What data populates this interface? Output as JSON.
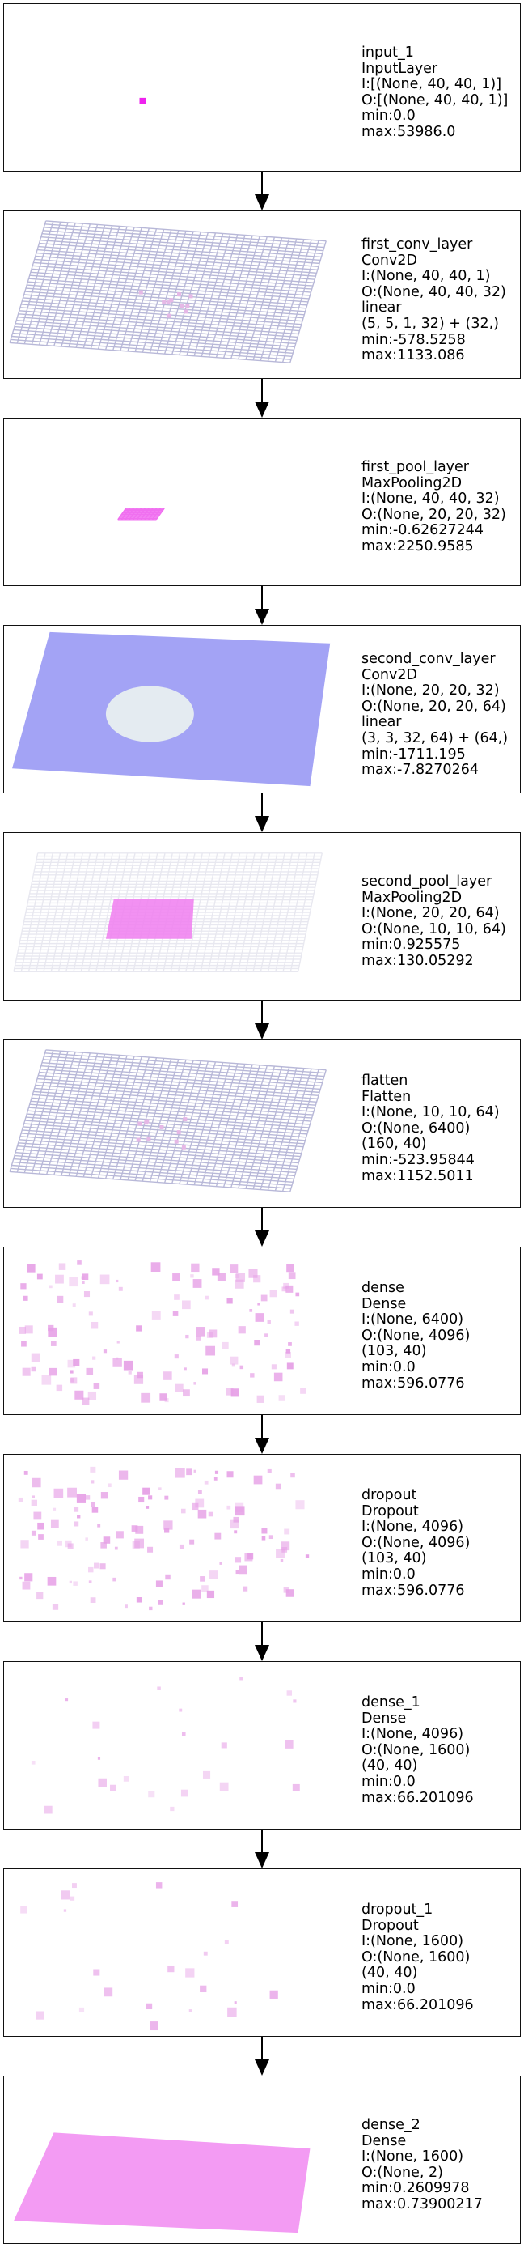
{
  "layers": [
    {
      "name": "input_1",
      "type": "InputLayer",
      "details": [
        "I:[(None, 40, 40, 1)]",
        "O:[(None, 40, 40, 1)]",
        "min:0.0",
        "max:53986.0"
      ],
      "viz": "point",
      "color": "#ee22ee"
    },
    {
      "name": "first_conv_layer",
      "type": "Conv2D",
      "details": [
        "I:(None, 40, 40, 1)",
        "O:(None, 40, 40, 32)",
        "linear",
        "(5, 5, 1, 32) + (32,)",
        "min:-578.5258",
        "max:1133.086"
      ],
      "viz": "grid",
      "color": "#b8b8d8",
      "accent": "#e6b8e6"
    },
    {
      "name": "first_pool_layer",
      "type": "MaxPooling2D",
      "details": [
        "I:(None, 40, 40, 32)",
        "O:(None, 20, 20, 32)",
        "min:-0.62627244",
        "max:2250.9585"
      ],
      "viz": "smallgrid",
      "color": "#f070f0"
    },
    {
      "name": "second_conv_layer",
      "type": "Conv2D",
      "details": [
        "I:(None, 20, 20, 32)",
        "O:(None, 20, 20, 64)",
        "linear",
        "(3, 3, 32, 64) + (64,)",
        "min:-1711.195",
        "max:-7.8270264"
      ],
      "viz": "bluegrid",
      "color": "#8c8cf2",
      "accent": "#f0f8f0"
    },
    {
      "name": "second_pool_layer",
      "type": "MaxPooling2D",
      "details": [
        "I:(None, 20, 20, 64)",
        "O:(None, 10, 10, 64)",
        "min:0.925575",
        "max:130.05292"
      ],
      "viz": "pinkcenter",
      "color": "#e8e8f0",
      "accent": "#f07ef0"
    },
    {
      "name": "flatten",
      "type": "Flatten",
      "details": [
        "I:(None, 10, 10, 64)",
        "O:(None, 6400)",
        "(160, 40)",
        "min:-523.95844",
        "max:1152.5011"
      ],
      "viz": "grid",
      "color": "#b8b8d8",
      "accent": "#e6b8e6"
    },
    {
      "name": "dense",
      "type": "Dense",
      "details": [
        "I:(None, 6400)",
        "O:(None, 4096)",
        "(103, 40)",
        "min:0.0",
        "max:596.0776"
      ],
      "viz": "scatter",
      "color": "#e6a0e6",
      "count": 120
    },
    {
      "name": "dropout",
      "type": "Dropout",
      "details": [
        "I:(None, 4096)",
        "O:(None, 4096)",
        "(103, 40)",
        "min:0.0",
        "max:596.0776"
      ],
      "viz": "scatter",
      "color": "#e6a0e6",
      "count": 120
    },
    {
      "name": "dense_1",
      "type": "Dense",
      "details": [
        "I:(None, 4096)",
        "O:(None, 1600)",
        "(40, 40)",
        "min:0.0",
        "max:66.201096"
      ],
      "viz": "scatter",
      "color": "#eaaeea",
      "count": 22
    },
    {
      "name": "dropout_1",
      "type": "Dropout",
      "details": [
        "I:(None, 1600)",
        "O:(None, 1600)",
        "(40, 40)",
        "min:0.0",
        "max:66.201096"
      ],
      "viz": "scatter",
      "color": "#eaaeea",
      "count": 22
    },
    {
      "name": "dense_2",
      "type": "Dense",
      "details": [
        "I:(None, 1600)",
        "O:(None, 2)",
        "min:0.2609978",
        "max:0.73900217"
      ],
      "viz": "solidpink",
      "color": "#f290f2"
    }
  ]
}
